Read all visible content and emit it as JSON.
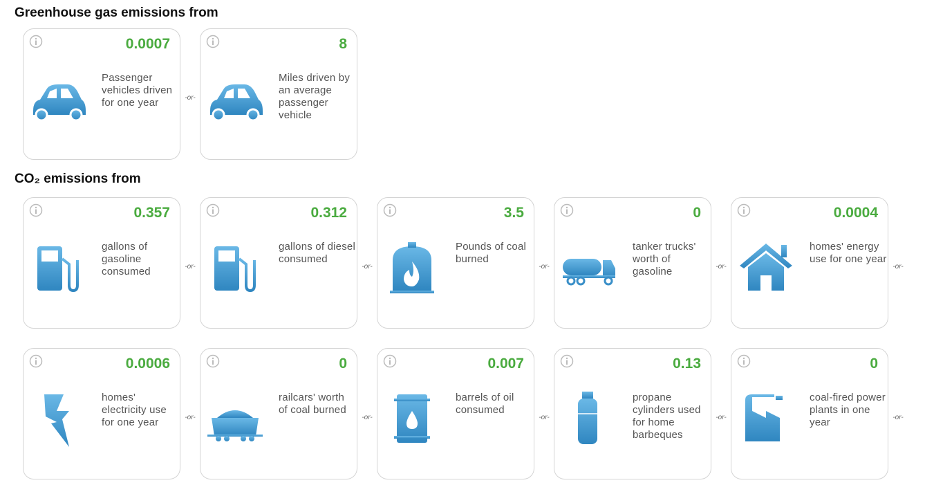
{
  "sections": [
    {
      "title": "Greenhouse gas emissions from",
      "cards": [
        {
          "value": "0.0007",
          "label": "Passenger vehicles driven for one year"
        },
        {
          "value": "8",
          "label": "Miles driven by an average passenger vehicle"
        }
      ]
    },
    {
      "title": "CO₂ emissions from",
      "cards": [
        {
          "value": "0.357",
          "label": "gallons of gasoline consumed"
        },
        {
          "value": "0.312",
          "label": "gallons of diesel consumed"
        },
        {
          "value": "3.5",
          "label": "Pounds of coal burned"
        },
        {
          "value": "0",
          "label": "tanker trucks' worth of gasoline"
        },
        {
          "value": "0.0004",
          "label": "homes' energy use for one year"
        },
        {
          "value": "0.0006",
          "label": "homes' electricity use for one year"
        },
        {
          "value": "0",
          "label": "railcars' worth of coal burned"
        },
        {
          "value": "0.007",
          "label": "barrels of oil consumed"
        },
        {
          "value": "0.13",
          "label": "propane cylinders used for home barbeques"
        },
        {
          "value": "0",
          "label": "coal-fired power plants in one year"
        }
      ]
    }
  ],
  "separator": "-or-"
}
